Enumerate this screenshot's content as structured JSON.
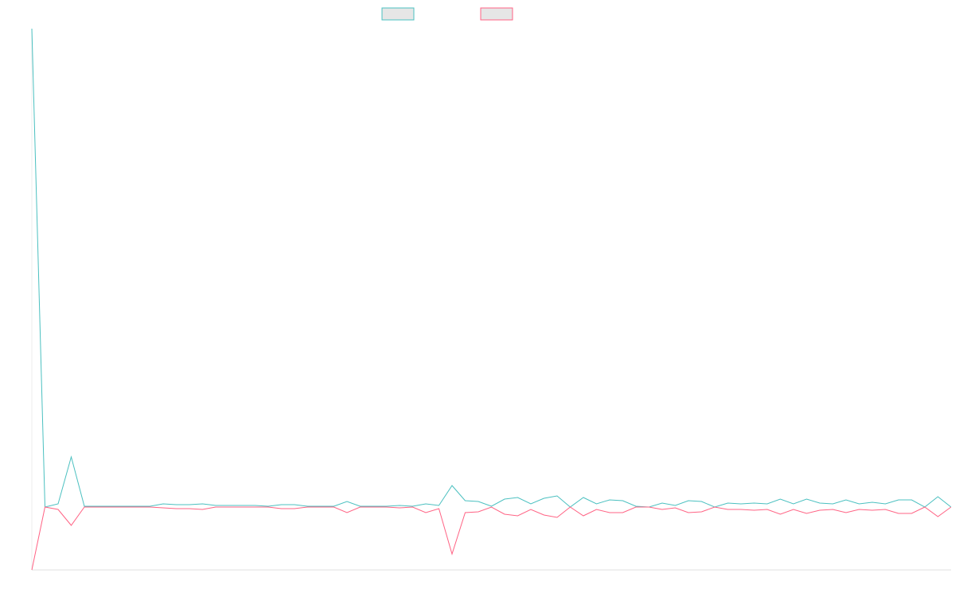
{
  "chart_data": {
    "type": "line",
    "categories": [
      null,
      null,
      null,
      null,
      null,
      null,
      null,
      null,
      null,
      null,
      null,
      null,
      null,
      null,
      null,
      null,
      null,
      null,
      null,
      null,
      null,
      null,
      null,
      null,
      null,
      null,
      null,
      null,
      null,
      null,
      null,
      null,
      null,
      null,
      null,
      null,
      null,
      null,
      null,
      null,
      null,
      null,
      null,
      null,
      null,
      null,
      null,
      null,
      null,
      null,
      null,
      null,
      null,
      null,
      null,
      null,
      null,
      null,
      null,
      null,
      null,
      null,
      null,
      null,
      null,
      null,
      null,
      null,
      null,
      null,
      null
    ],
    "ylim": [
      -79,
      601
    ],
    "series": [
      {
        "color": "#4bc0c0",
        "values": [
          601,
          0,
          4,
          63,
          1,
          1,
          1,
          1,
          1,
          1,
          4,
          3,
          3,
          4,
          2,
          2,
          2,
          2,
          1,
          3,
          3,
          1,
          1,
          1,
          7,
          1,
          1,
          1,
          2,
          1,
          4,
          2,
          27,
          8,
          7,
          1,
          10,
          12,
          4,
          11,
          14,
          0,
          12,
          4,
          9,
          8,
          1,
          0,
          5,
          2,
          8,
          7,
          0,
          5,
          4,
          5,
          4,
          10,
          4,
          10,
          5,
          4,
          9,
          4,
          6,
          4,
          9,
          9,
          0,
          13,
          0
        ]
      },
      {
        "color": "#ff6384",
        "values": [
          -79,
          0,
          -3,
          -23,
          0,
          0,
          0,
          0,
          0,
          0,
          -1,
          -2,
          -2,
          -3,
          0,
          0,
          0,
          0,
          0,
          -2,
          -2,
          0,
          0,
          0,
          -7,
          0,
          0,
          0,
          -1,
          0,
          -7,
          -2,
          -59,
          -7,
          -6,
          0,
          -9,
          -11,
          -3,
          -10,
          -13,
          0,
          -11,
          -3,
          -7,
          -7,
          0,
          0,
          -3,
          -1,
          -7,
          -6,
          0,
          -3,
          -3,
          -4,
          -3,
          -9,
          -3,
          -8,
          -4,
          -3,
          -7,
          -3,
          -4,
          -3,
          -8,
          -8,
          0,
          -12,
          0
        ]
      }
    ]
  }
}
